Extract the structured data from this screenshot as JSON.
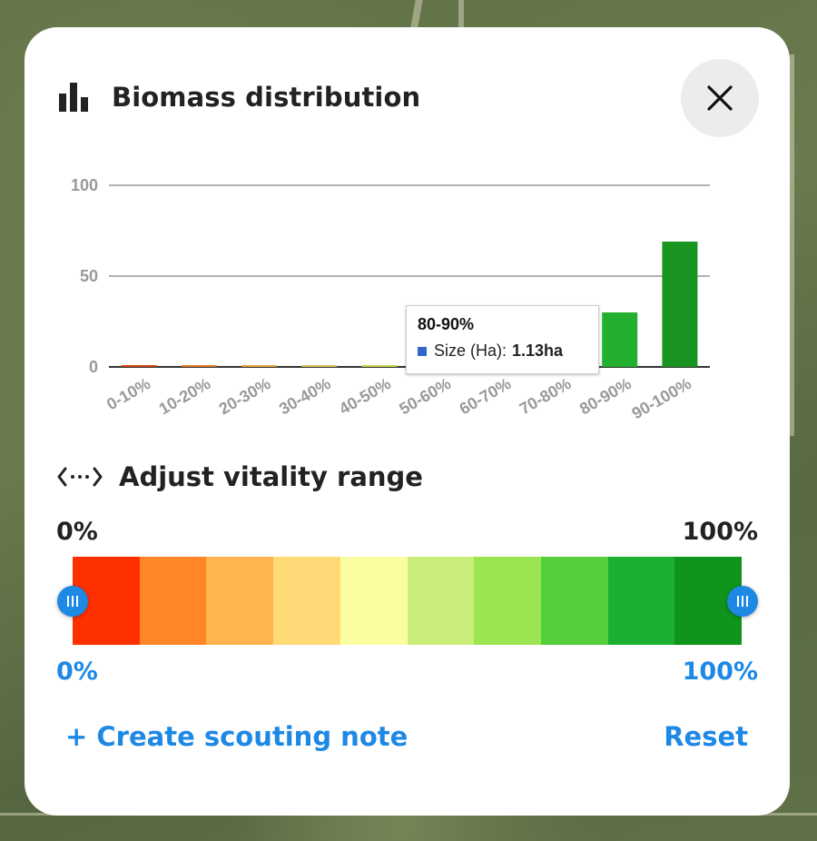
{
  "panel": {
    "title": "Biomass distribution",
    "close_icon": "close-icon",
    "chart_icon": "bar-chart-icon"
  },
  "chart_data": {
    "type": "bar",
    "categories": [
      "0-10%",
      "10-20%",
      "20-30%",
      "30-40%",
      "40-50%",
      "50-60%",
      "60-70%",
      "70-80%",
      "80-90%",
      "90-100%"
    ],
    "values": [
      0.8,
      0.6,
      0.5,
      0.4,
      0.4,
      0.5,
      1.0,
      15,
      30,
      69
    ],
    "colors": [
      "#d84315",
      "#e07a28",
      "#e3a340",
      "#e0c05a",
      "#c9d34c",
      "#a8cf47",
      "#8ccf3e",
      "#33b93a",
      "#22b02e",
      "#1a9420"
    ],
    "ylim": [
      0,
      100
    ],
    "yticks": [
      "0",
      "50",
      "100"
    ],
    "grid": true,
    "tooltip": {
      "title": "80-90%",
      "series_label": "Size (Ha):",
      "value": "1.13ha",
      "swatch_color": "#3366cc"
    }
  },
  "vitality": {
    "title": "Adjust vitality range",
    "icon": "range-arrows-icon",
    "min_label": "0%",
    "max_label": "100%",
    "selected_min": "0%",
    "selected_max": "100%",
    "segment_colors": [
      "#ff3000",
      "#ff8526",
      "#ffb54d",
      "#ffda77",
      "#fbfda1",
      "#cbee7a",
      "#9be553",
      "#55cf39",
      "#1bb02f",
      "#0f941c"
    ],
    "handle_min_fraction": 0,
    "handle_max_fraction": 1
  },
  "actions": {
    "create_note": "+ Create scouting note",
    "reset": "Reset"
  }
}
